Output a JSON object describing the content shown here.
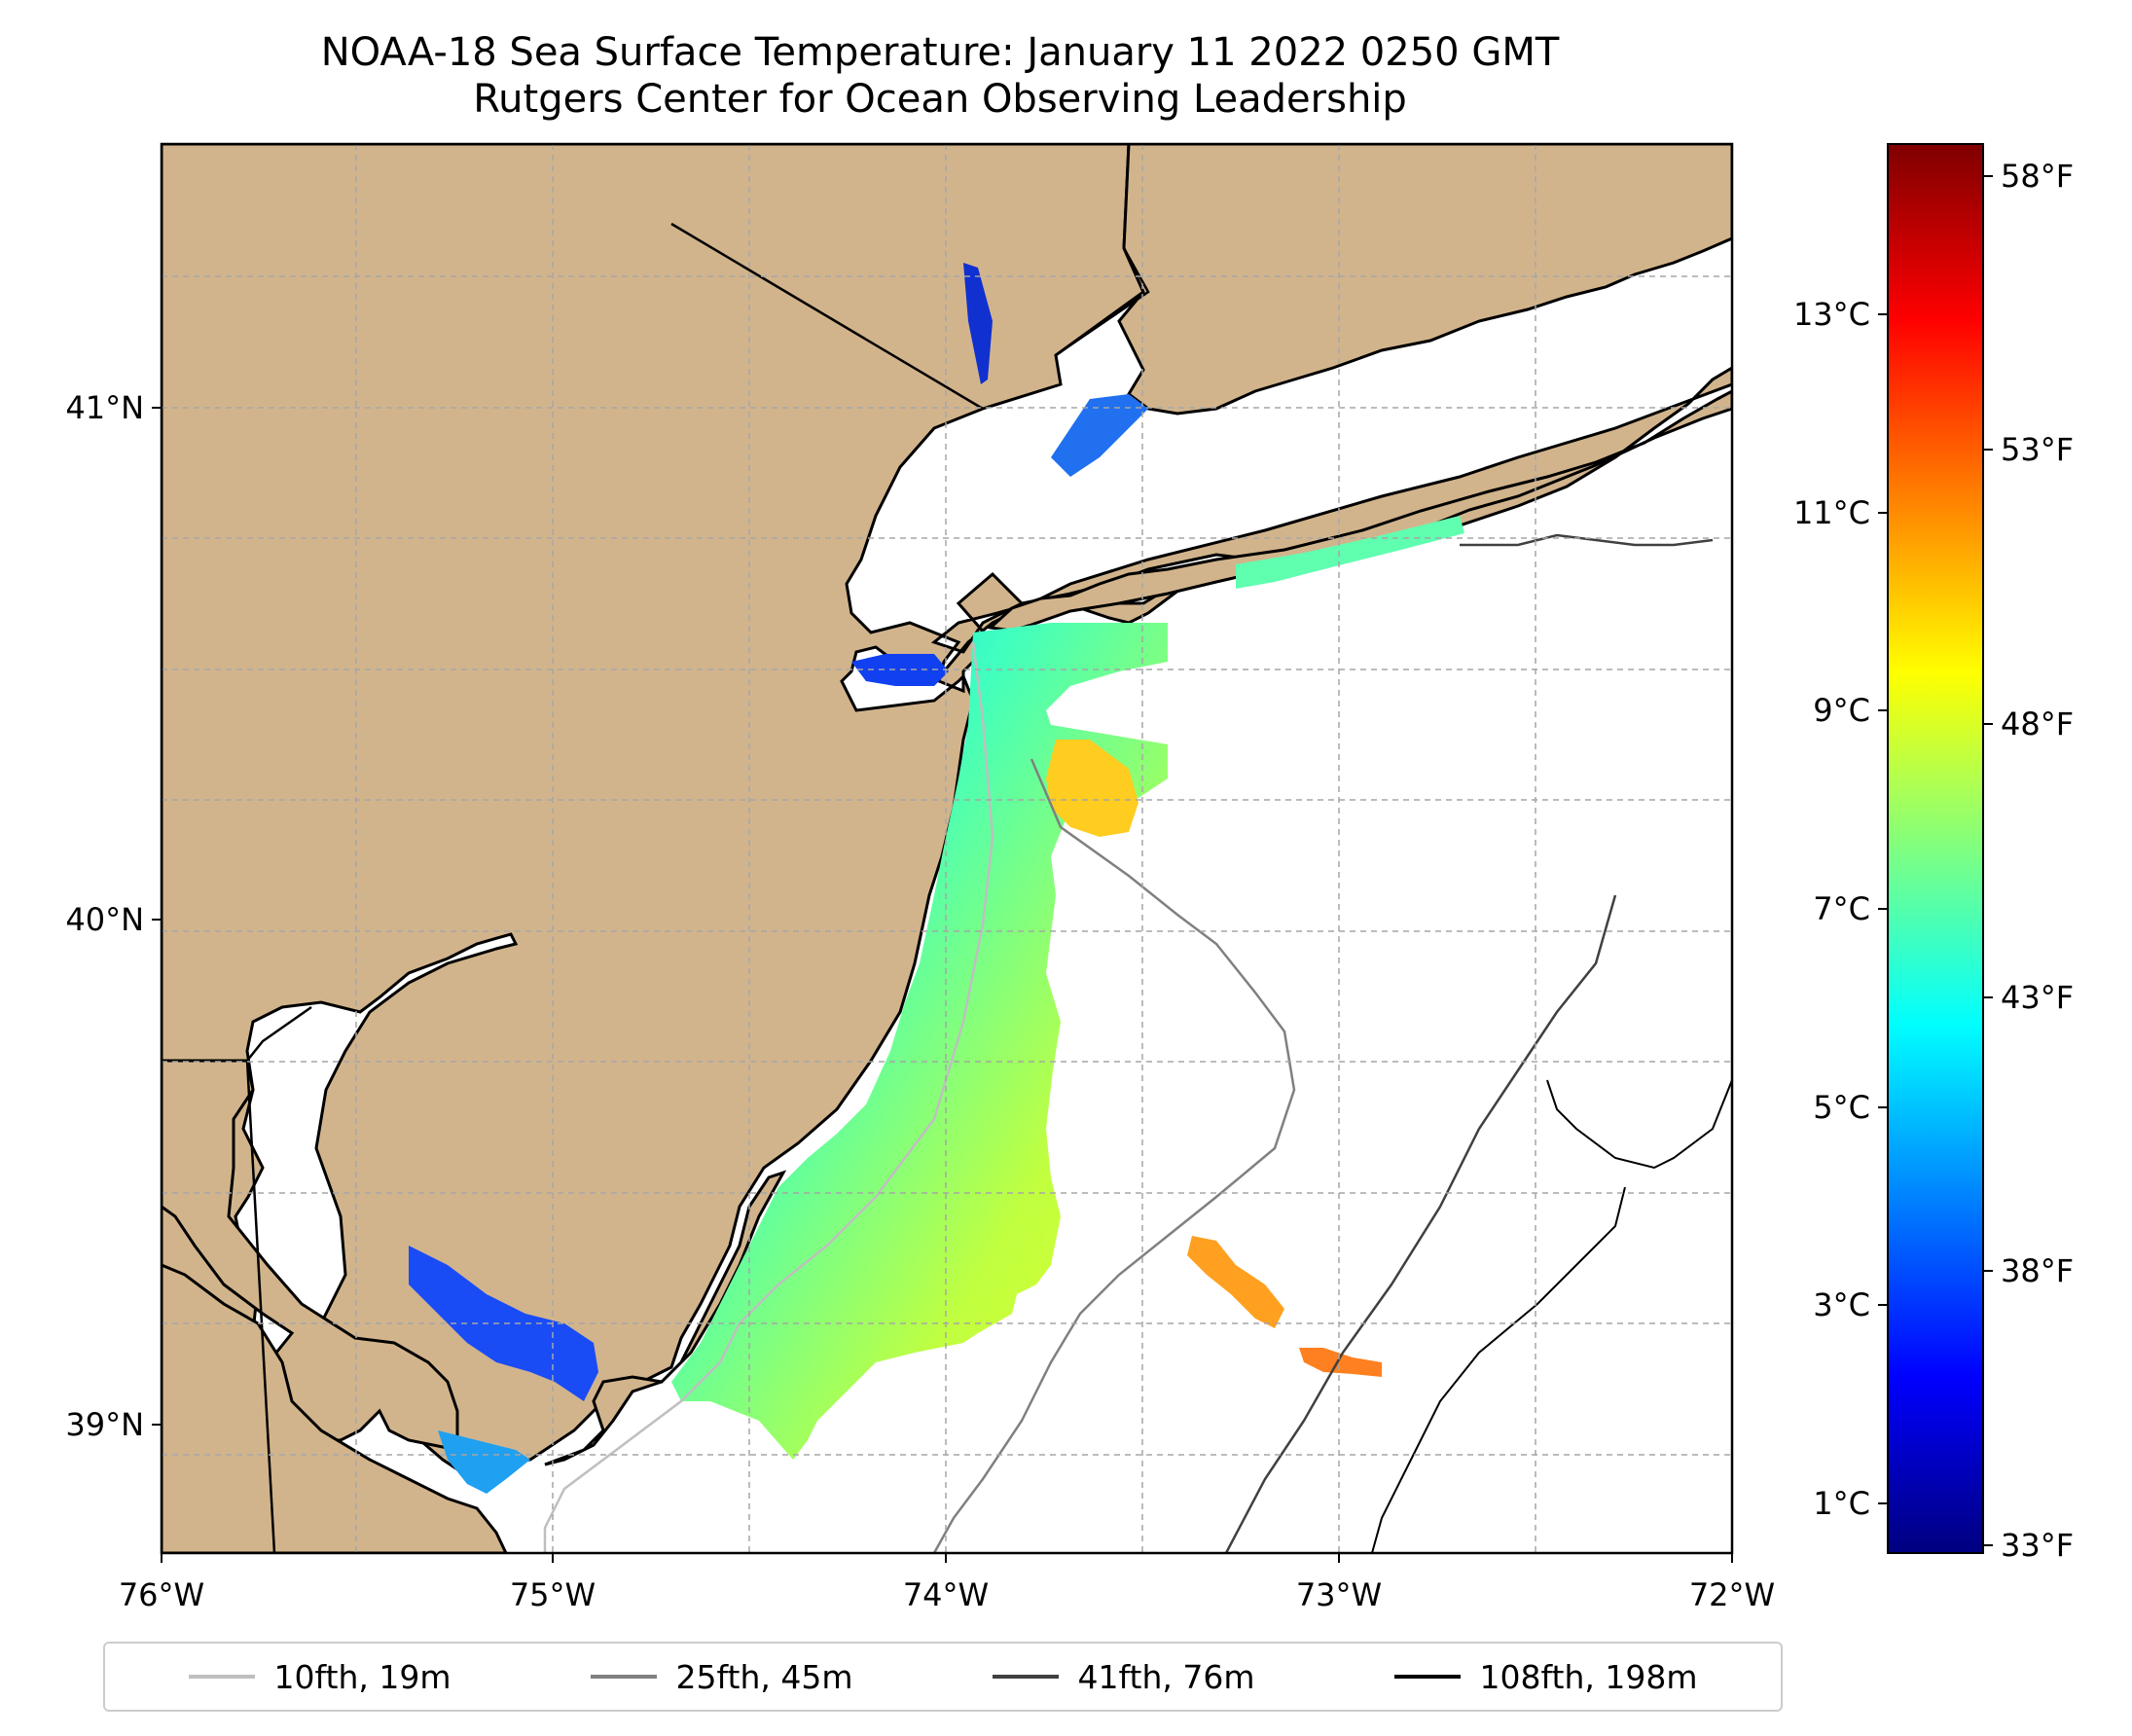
{
  "title": {
    "line1": "NOAA-18 Sea Surface Temperature: January 11 2022 0250 GMT",
    "line2": "Rutgers Center for Ocean Observing Leadership"
  },
  "axes": {
    "x_ticks": [
      "76°W",
      "75°W",
      "74°W",
      "73°W",
      "72°W"
    ],
    "y_ticks": [
      "41°N",
      "40°N",
      "39°N"
    ]
  },
  "colorbar": {
    "celsius_ticks": [
      "13°C",
      "11°C",
      "9°C",
      "7°C",
      "5°C",
      "3°C",
      "1°C"
    ],
    "fahrenheit_ticks": [
      "58°F",
      "53°F",
      "48°F",
      "43°F",
      "38°F",
      "33°F"
    ],
    "range_f": [
      33,
      59
    ],
    "colors": [
      "#00007f",
      "#0000ff",
      "#0080ff",
      "#00ffff",
      "#80ff80",
      "#ffff00",
      "#ff8000",
      "#ff0000",
      "#7f0000"
    ]
  },
  "colors": {
    "land": "#d2b48c",
    "coast": "#000000",
    "grid": "#a6a6a6"
  },
  "legend": [
    {
      "label": "10fth, 19m",
      "color": "#bfbfbf"
    },
    {
      "label": "25fth, 45m",
      "color": "#808080"
    },
    {
      "label": "41fth, 76m",
      "color": "#404040"
    },
    {
      "label": "108fth, 198m",
      "color": "#000000"
    }
  ]
}
